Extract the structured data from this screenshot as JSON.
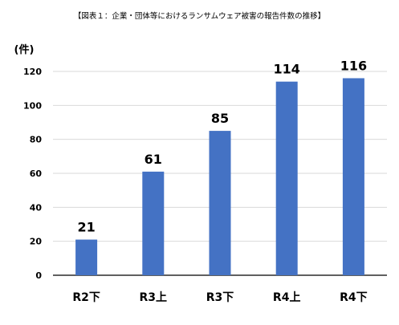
{
  "chart_data": {
    "type": "bar",
    "title": "【図表１：企業・団体等におけるランサムウェア被害の報告件数の推移】",
    "unit_label": "(件)",
    "categories": [
      "R2下",
      "R3上",
      "R3下",
      "R4上",
      "R4下"
    ],
    "values": [
      21,
      61,
      85,
      114,
      116
    ],
    "ylim": [
      0,
      120
    ],
    "yticks": [
      0,
      20,
      40,
      60,
      80,
      100,
      120
    ],
    "grid": true,
    "legend": "none",
    "colors": {
      "bar": "#4472C4",
      "grid": "#D9D9D9",
      "axis": "#000000"
    }
  }
}
